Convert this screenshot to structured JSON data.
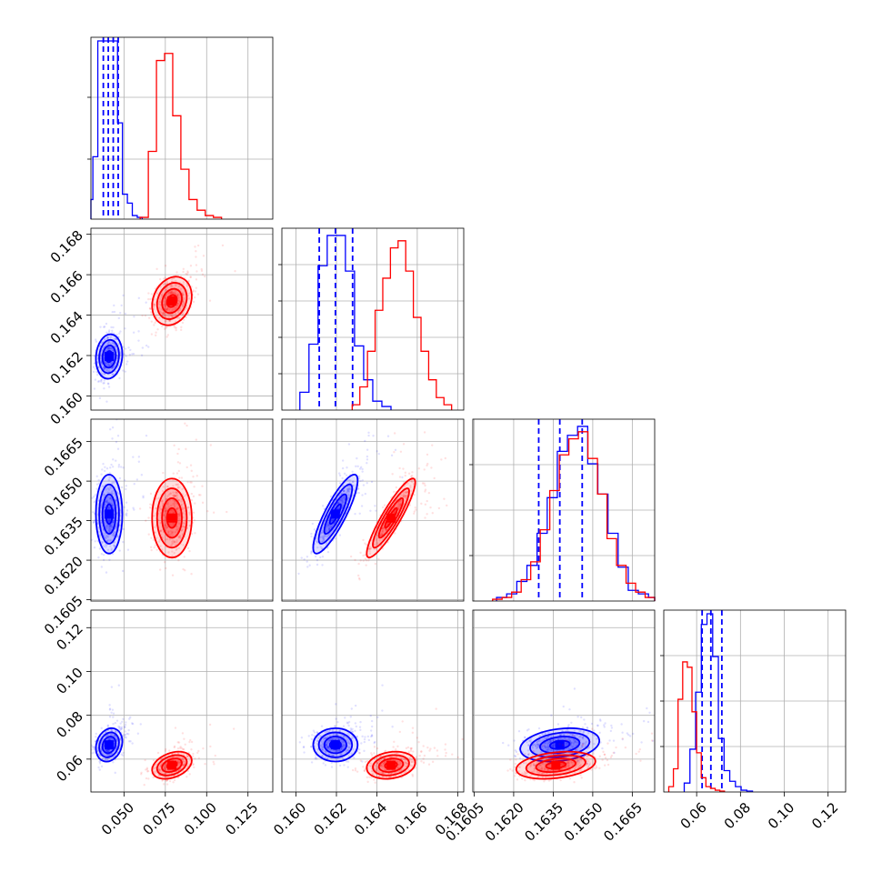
{
  "chart_data": {
    "type": "corner",
    "title": "",
    "grid": true,
    "colors": {
      "blue": "#0000ff",
      "red": "#ff0000"
    },
    "parameters": [
      {
        "range": [
          0.03,
          0.14
        ],
        "ticks": [
          0.05,
          0.075,
          0.1,
          0.125
        ],
        "tick_labels": [
          "0.050",
          "0.075",
          "0.100",
          "0.125"
        ]
      },
      {
        "range": [
          0.1593,
          0.1683
        ],
        "ticks": [
          0.16,
          0.162,
          0.164,
          0.166,
          0.168
        ],
        "tick_labels": [
          "0.160",
          "0.162",
          "0.164",
          "0.166",
          "0.168"
        ]
      },
      {
        "range": [
          0.16045,
          0.16735
        ],
        "ticks": [
          0.1605,
          0.162,
          0.1635,
          0.165,
          0.1665
        ],
        "tick_labels": [
          "0.1605",
          "0.1620",
          "0.1635",
          "0.1650",
          "0.1665"
        ]
      },
      {
        "range": [
          0.045,
          0.128
        ],
        "ticks": [
          0.06,
          0.08,
          0.1,
          0.12
        ],
        "tick_labels": [
          "0.06",
          "0.08",
          "0.10",
          "0.12"
        ]
      }
    ],
    "series": [
      {
        "color": "#0000ff",
        "params": [
          {
            "mean": 0.041,
            "sd": 0.004,
            "quantiles": [
              0.0375,
              0.0405,
              0.0435,
              0.0465
            ]
          },
          {
            "mean": 0.16195,
            "sd": 0.00055,
            "quantiles": [
              0.16115,
              0.16195,
              0.1628
            ]
          },
          {
            "mean": 0.16375,
            "sd": 0.00075,
            "quantiles": [
              0.16295,
              0.16375,
              0.1646
            ]
          },
          {
            "mean": 0.0665,
            "sd": 0.0038,
            "quantiles": [
              0.0625,
              0.0665,
              0.0715
            ]
          }
        ],
        "correlations": [
          [
            0,
            1,
            0.1
          ],
          [
            0,
            2,
            0.0
          ],
          [
            0,
            3,
            0.2
          ],
          [
            1,
            2,
            0.85
          ],
          [
            1,
            3,
            0.0
          ],
          [
            2,
            3,
            0.25
          ]
        ],
        "hist_values": [
          [
            0.11,
            0.35,
            1.0,
            1.0,
            1.0,
            1.0,
            0.54,
            0.14,
            0.09,
            0.02,
            0.01
          ],
          [
            0.1,
            0.37,
            0.81,
            0.98,
            0.98,
            0.78,
            0.36,
            0.17,
            0.05,
            0.02
          ],
          [
            0.02,
            0.04,
            0.11,
            0.2,
            0.38,
            0.58,
            0.84,
            0.93,
            0.98,
            0.77,
            0.6,
            0.38,
            0.19,
            0.06,
            0.04,
            0.02
          ],
          [
            0.05,
            0.24,
            0.56,
            0.94,
            1.0,
            0.76,
            0.3,
            0.12,
            0.06,
            0.03,
            0.01,
            0.005
          ]
        ]
      },
      {
        "color": "#ff0000",
        "params": [
          {
            "mean": 0.079,
            "sd": 0.006
          },
          {
            "mean": 0.1647,
            "sd": 0.0006
          },
          {
            "mean": 0.1636,
            "sd": 0.00075
          },
          {
            "mean": 0.0572,
            "sd": 0.0031
          }
        ],
        "correlations": [
          [
            0,
            1,
            0.2
          ],
          [
            0,
            2,
            0.0
          ],
          [
            0,
            3,
            0.35
          ],
          [
            1,
            2,
            0.9
          ],
          [
            1,
            3,
            0.2
          ],
          [
            2,
            3,
            0.3
          ]
        ],
        "hist_values": [
          [
            0.01,
            0.38,
            0.89,
            0.93,
            0.58,
            0.28,
            0.11,
            0.05,
            0.02,
            0.01
          ],
          [
            0.03,
            0.13,
            0.33,
            0.56,
            0.74,
            0.91,
            0.95,
            0.78,
            0.52,
            0.33,
            0.17,
            0.07,
            0.03
          ],
          [
            0.01,
            0.02,
            0.05,
            0.12,
            0.22,
            0.4,
            0.62,
            0.82,
            0.91,
            0.95,
            0.8,
            0.6,
            0.35,
            0.2,
            0.1,
            0.05,
            0.02
          ],
          [
            0.03,
            0.13,
            0.52,
            0.73,
            0.7,
            0.45,
            0.22,
            0.08,
            0.03,
            0.02,
            0.01,
            0.005
          ]
        ]
      }
    ]
  }
}
